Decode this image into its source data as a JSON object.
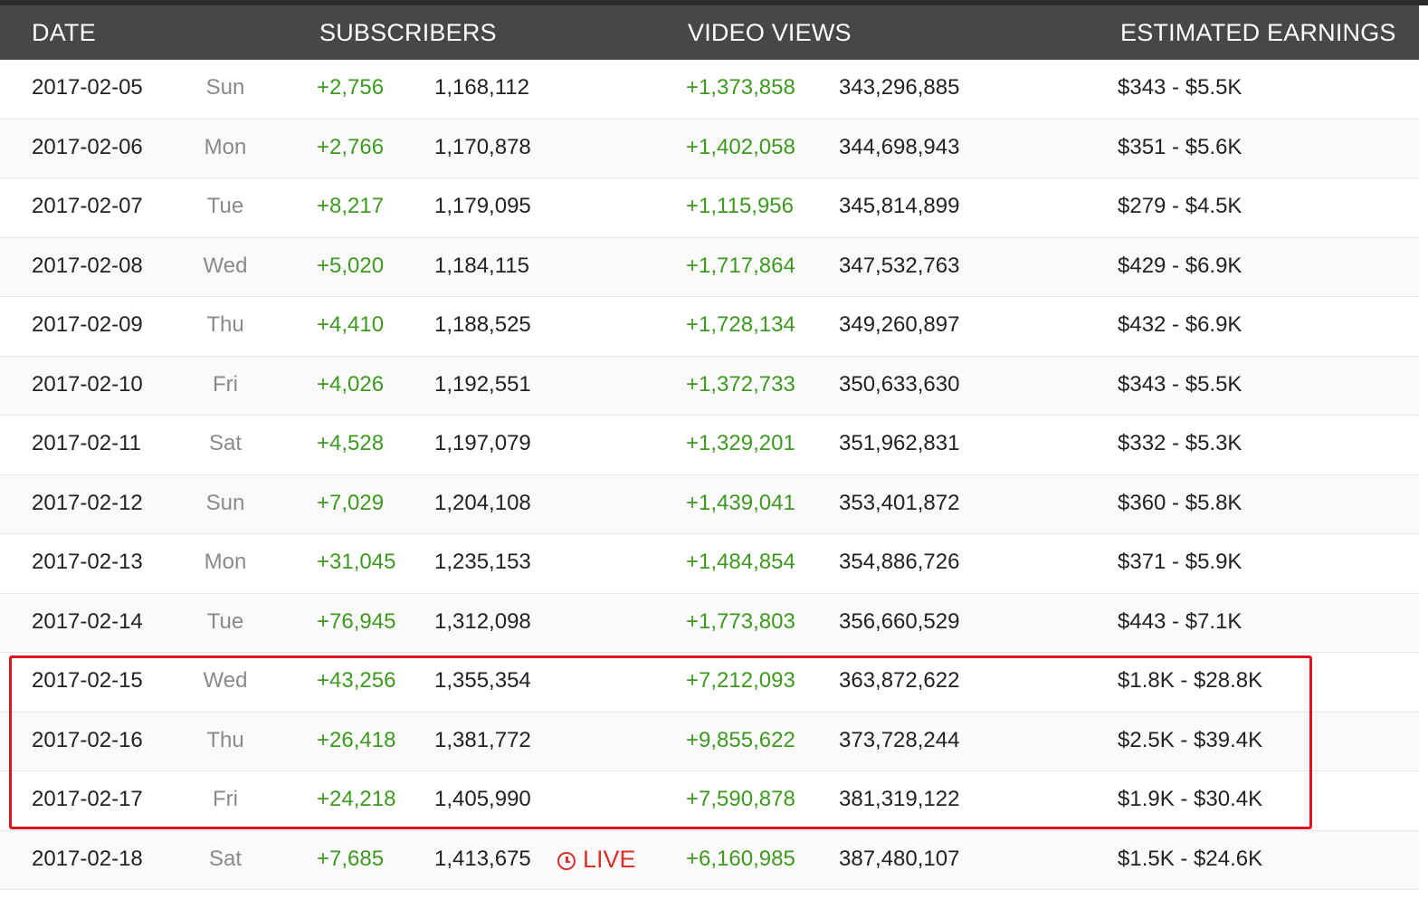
{
  "header": {
    "date": "DATE",
    "subscribers": "SUBSCRIBERS",
    "video_views": "VIDEO VIEWS",
    "estimated_earnings": "ESTIMATED EARNINGS"
  },
  "colors": {
    "header_bg": "#474747",
    "gain_green": "#3d9a1f",
    "highlight_red": "#e0141e",
    "live_red": "#d9302a"
  },
  "live_label": "LIVE",
  "live_icon": "clock-icon",
  "highlighted_rows": [
    "2017-02-15",
    "2017-02-16",
    "2017-02-17"
  ],
  "rows": [
    {
      "date": "2017-02-05",
      "day": "Sun",
      "sub_gain": "+2,756",
      "sub_total": "1,168,112",
      "view_gain": "+1,373,858",
      "view_total": "343,296,885",
      "earnings": "$343  -  $5.5K"
    },
    {
      "date": "2017-02-06",
      "day": "Mon",
      "sub_gain": "+2,766",
      "sub_total": "1,170,878",
      "view_gain": "+1,402,058",
      "view_total": "344,698,943",
      "earnings": "$351  -  $5.6K"
    },
    {
      "date": "2017-02-07",
      "day": "Tue",
      "sub_gain": "+8,217",
      "sub_total": "1,179,095",
      "view_gain": "+1,115,956",
      "view_total": "345,814,899",
      "earnings": "$279  -  $4.5K"
    },
    {
      "date": "2017-02-08",
      "day": "Wed",
      "sub_gain": "+5,020",
      "sub_total": "1,184,115",
      "view_gain": "+1,717,864",
      "view_total": "347,532,763",
      "earnings": "$429  -  $6.9K"
    },
    {
      "date": "2017-02-09",
      "day": "Thu",
      "sub_gain": "+4,410",
      "sub_total": "1,188,525",
      "view_gain": "+1,728,134",
      "view_total": "349,260,897",
      "earnings": "$432  -  $6.9K"
    },
    {
      "date": "2017-02-10",
      "day": "Fri",
      "sub_gain": "+4,026",
      "sub_total": "1,192,551",
      "view_gain": "+1,372,733",
      "view_total": "350,633,630",
      "earnings": "$343  -  $5.5K"
    },
    {
      "date": "2017-02-11",
      "day": "Sat",
      "sub_gain": "+4,528",
      "sub_total": "1,197,079",
      "view_gain": "+1,329,201",
      "view_total": "351,962,831",
      "earnings": "$332  -  $5.3K"
    },
    {
      "date": "2017-02-12",
      "day": "Sun",
      "sub_gain": "+7,029",
      "sub_total": "1,204,108",
      "view_gain": "+1,439,041",
      "view_total": "353,401,872",
      "earnings": "$360  -  $5.8K"
    },
    {
      "date": "2017-02-13",
      "day": "Mon",
      "sub_gain": "+31,045",
      "sub_total": "1,235,153",
      "view_gain": "+1,484,854",
      "view_total": "354,886,726",
      "earnings": "$371  -  $5.9K"
    },
    {
      "date": "2017-02-14",
      "day": "Tue",
      "sub_gain": "+76,945",
      "sub_total": "1,312,098",
      "view_gain": "+1,773,803",
      "view_total": "356,660,529",
      "earnings": "$443  -  $7.1K"
    },
    {
      "date": "2017-02-15",
      "day": "Wed",
      "sub_gain": "+43,256",
      "sub_total": "1,355,354",
      "view_gain": "+7,212,093",
      "view_total": "363,872,622",
      "earnings": "$1.8K  -  $28.8K"
    },
    {
      "date": "2017-02-16",
      "day": "Thu",
      "sub_gain": "+26,418",
      "sub_total": "1,381,772",
      "view_gain": "+9,855,622",
      "view_total": "373,728,244",
      "earnings": "$2.5K  -  $39.4K"
    },
    {
      "date": "2017-02-17",
      "day": "Fri",
      "sub_gain": "+24,218",
      "sub_total": "1,405,990",
      "view_gain": "+7,590,878",
      "view_total": "381,319,122",
      "earnings": "$1.9K  -  $30.4K"
    },
    {
      "date": "2017-02-18",
      "day": "Sat",
      "sub_gain": "+7,685",
      "sub_total": "1,413,675",
      "view_gain": "+6,160,985",
      "view_total": "387,480,107",
      "earnings": "$1.5K  -  $24.6K",
      "live": true
    }
  ]
}
